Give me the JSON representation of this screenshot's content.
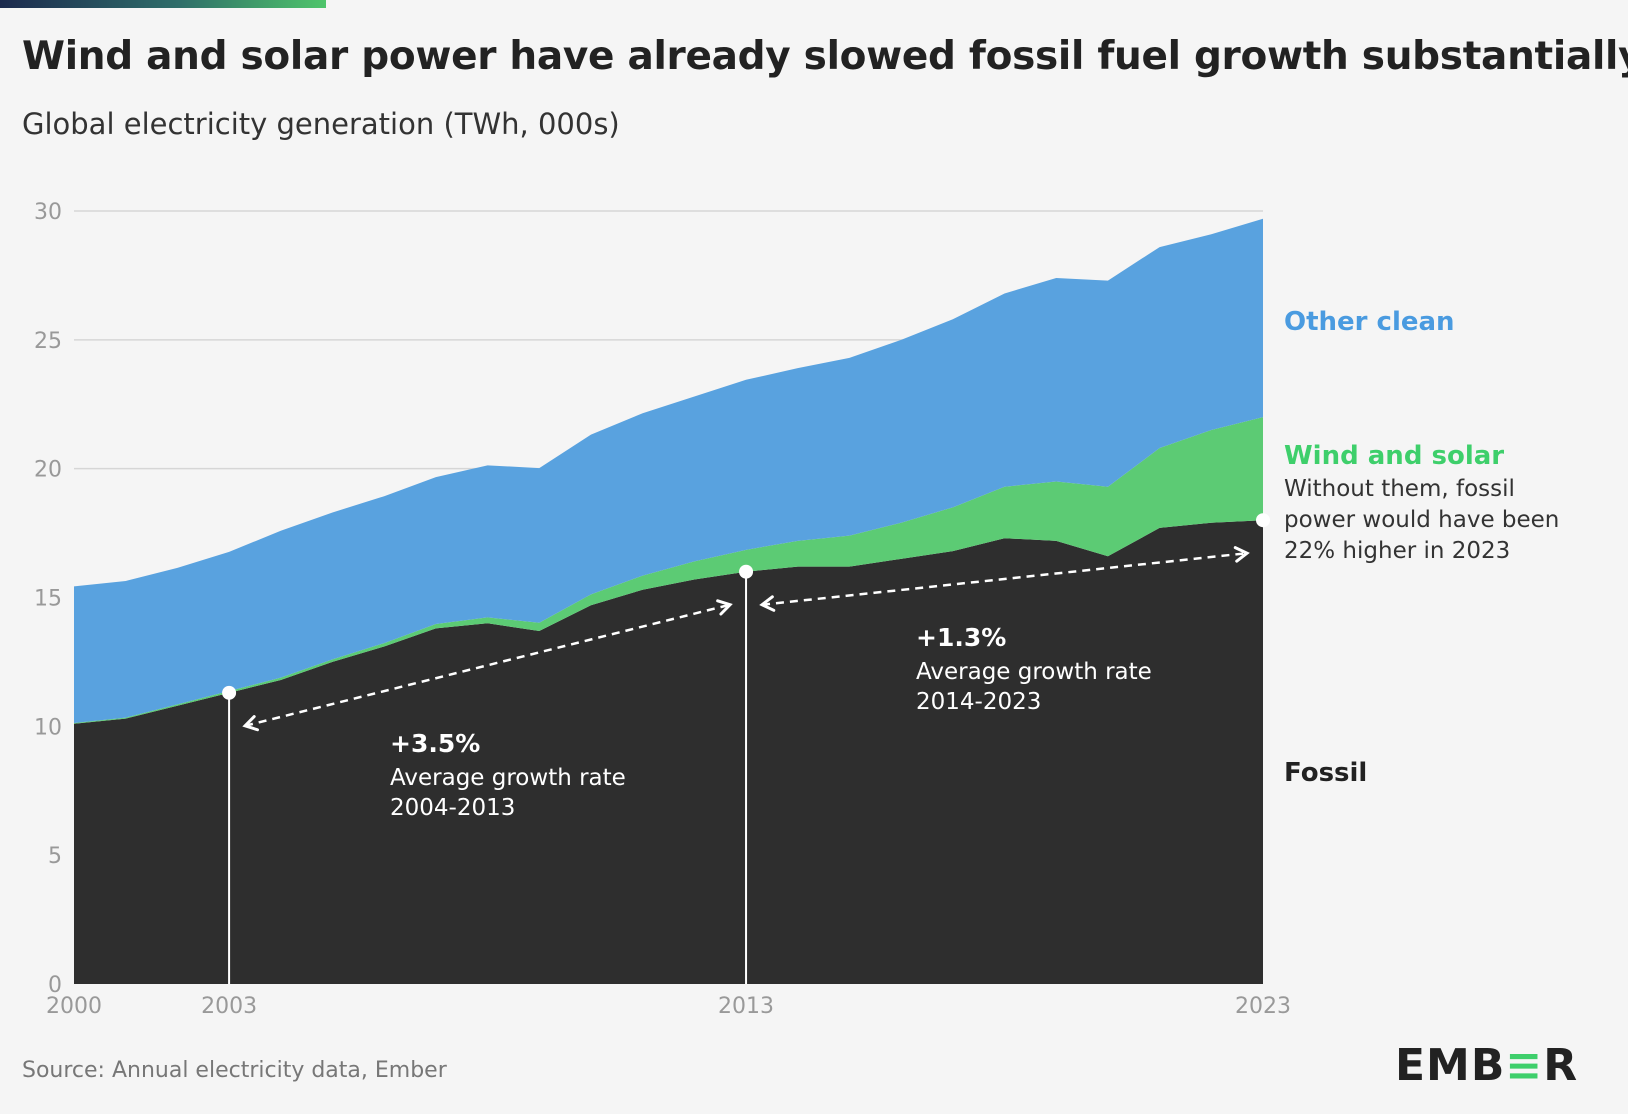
{
  "title": "Wind and solar power have already slowed fossil fuel growth substantially",
  "subtitle": "Global electricity generation (TWh, 000s)",
  "source": "Source: Annual electricity data, Ember",
  "logo": "EMBER",
  "colors": {
    "fossil": "#2e2e2e",
    "wind_solar": "#5ccb74",
    "other_clean": "#59a2df",
    "grid": "#d6d6d6",
    "background": "#f5f5f5"
  },
  "legend": {
    "other_clean": "Other clean",
    "wind_solar": "Wind and solar",
    "wind_solar_note": [
      "Without them, fossil",
      "power would have been",
      "22% higher in 2023"
    ],
    "fossil": "Fossil"
  },
  "annotations": [
    {
      "value": "+3.5%",
      "label": "Average growth rate",
      "period": "2004-2013",
      "from_year": 2003,
      "to_year": 2013
    },
    {
      "value": "+1.3%",
      "label": "Average growth rate",
      "period": "2014-2023",
      "from_year": 2013,
      "to_year": 2023
    }
  ],
  "chart_data": {
    "type": "area",
    "stacked": true,
    "x": [
      2000,
      2001,
      2002,
      2003,
      2004,
      2005,
      2006,
      2007,
      2008,
      2009,
      2010,
      2011,
      2012,
      2013,
      2014,
      2015,
      2016,
      2017,
      2018,
      2019,
      2020,
      2021,
      2022,
      2023
    ],
    "series": [
      {
        "name": "Fossil",
        "values": [
          10.1,
          10.3,
          10.8,
          11.3,
          11.8,
          12.5,
          13.1,
          13.8,
          14.0,
          13.7,
          14.7,
          15.3,
          15.7,
          16.0,
          16.2,
          16.2,
          16.5,
          16.8,
          17.3,
          17.2,
          16.6,
          17.7,
          17.9,
          18.0
        ]
      },
      {
        "name": "Wind and solar",
        "values": [
          0.03,
          0.04,
          0.05,
          0.07,
          0.09,
          0.1,
          0.13,
          0.17,
          0.23,
          0.32,
          0.42,
          0.55,
          0.7,
          0.85,
          1.0,
          1.2,
          1.4,
          1.7,
          2.0,
          2.3,
          2.7,
          3.1,
          3.6,
          4.0
        ]
      },
      {
        "name": "Other clean",
        "values": [
          5.3,
          5.3,
          5.3,
          5.4,
          5.7,
          5.7,
          5.7,
          5.7,
          5.9,
          6.0,
          6.2,
          6.3,
          6.4,
          6.6,
          6.7,
          6.9,
          7.1,
          7.3,
          7.5,
          7.9,
          8.0,
          7.8,
          7.6,
          7.7
        ]
      }
    ],
    "totals_shown": {
      "2003": 11.3,
      "2013": 16.0,
      "2023": 18.0
    },
    "xlabel": "",
    "ylabel": "",
    "ylim": [
      0,
      30
    ],
    "yticks": [
      0,
      5,
      10,
      15,
      20,
      25,
      30
    ],
    "xticks": [
      2000,
      2003,
      2013,
      2023
    ],
    "grid": true,
    "legend_position": "right"
  }
}
